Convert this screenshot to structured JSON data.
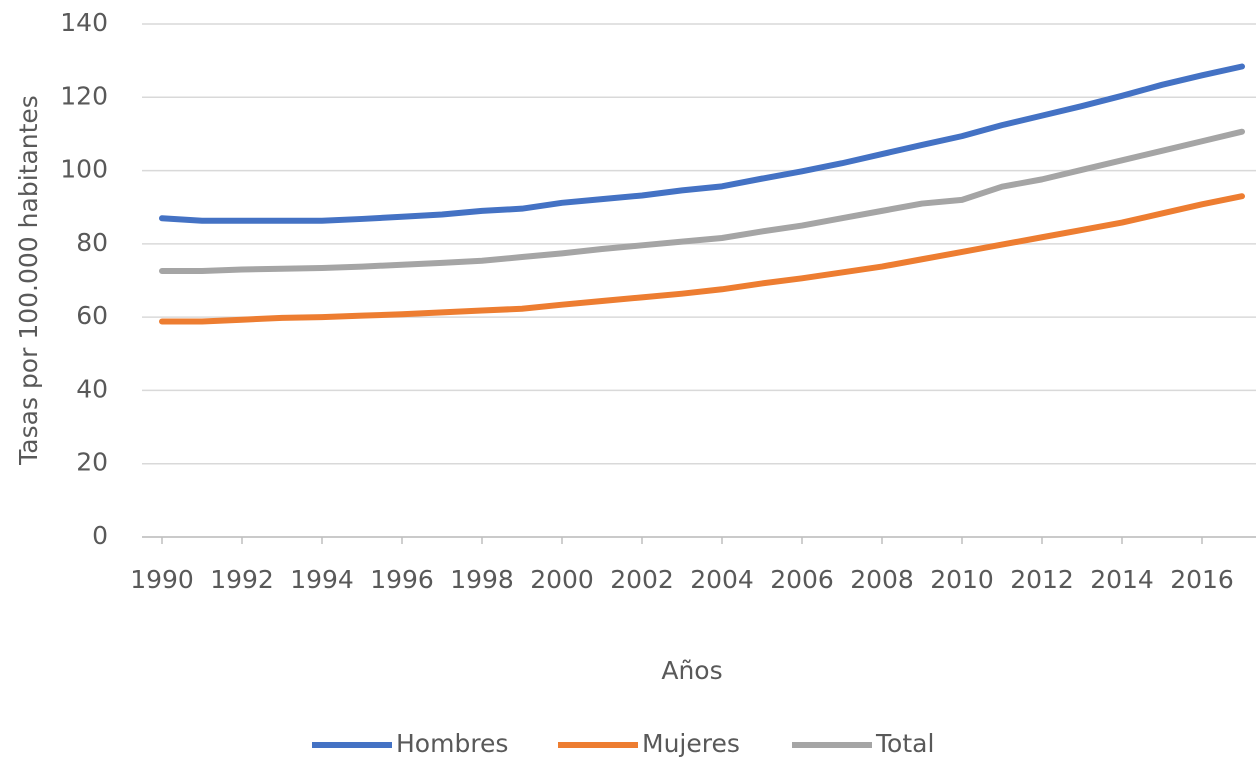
{
  "chart_data": {
    "type": "line",
    "y_label": "Tasas por 100.000 habitantes",
    "x_label": "Años",
    "x": [
      1990,
      1991,
      1992,
      1993,
      1994,
      1995,
      1996,
      1997,
      1998,
      1999,
      2000,
      2001,
      2002,
      2003,
      2004,
      2005,
      2006,
      2007,
      2008,
      2009,
      2010,
      2011,
      2012,
      2013,
      2014,
      2015,
      2016,
      2017
    ],
    "series": [
      {
        "name": "Hombres",
        "color": "#4472c4",
        "values": [
          87,
          86.3,
          86.3,
          86.3,
          86.3,
          86.8,
          87.4,
          88,
          89,
          89.6,
          91.2,
          92.2,
          93.2,
          94.6,
          95.7,
          97.8,
          99.8,
          102,
          104.5,
          107,
          109.4,
          112.4,
          115,
          117.6,
          120.4,
          123.4,
          126,
          128.4
        ]
      },
      {
        "name": "Mujeres",
        "color": "#ed7d31",
        "values": [
          58.8,
          58.8,
          59.3,
          59.8,
          60,
          60.4,
          60.8,
          61.3,
          61.8,
          62.3,
          63.4,
          64.4,
          65.4,
          66.4,
          67.6,
          69.2,
          70.6,
          72.2,
          73.8,
          75.8,
          77.8,
          79.8,
          81.8,
          83.8,
          85.8,
          88.3,
          90.8,
          93
        ]
      },
      {
        "name": "Total",
        "color": "#a5a5a5",
        "values": [
          72.6,
          72.6,
          73,
          73.2,
          73.4,
          73.8,
          74.3,
          74.8,
          75.4,
          76.4,
          77.4,
          78.6,
          79.6,
          80.6,
          81.6,
          83.4,
          85,
          87,
          89,
          91,
          92,
          95.6,
          97.6,
          100.2,
          102.8,
          105.4,
          108,
          110.6
        ]
      }
    ],
    "xlim": [
      1989.5,
      2017.5
    ],
    "xticks": [
      1990,
      1992,
      1994,
      1996,
      1998,
      2000,
      2002,
      2004,
      2006,
      2008,
      2010,
      2012,
      2014,
      2016
    ],
    "ylim": [
      0,
      140
    ],
    "yticks": [
      0,
      20,
      40,
      60,
      80,
      100,
      120,
      140
    ],
    "grid": true,
    "legend": "bottom"
  }
}
